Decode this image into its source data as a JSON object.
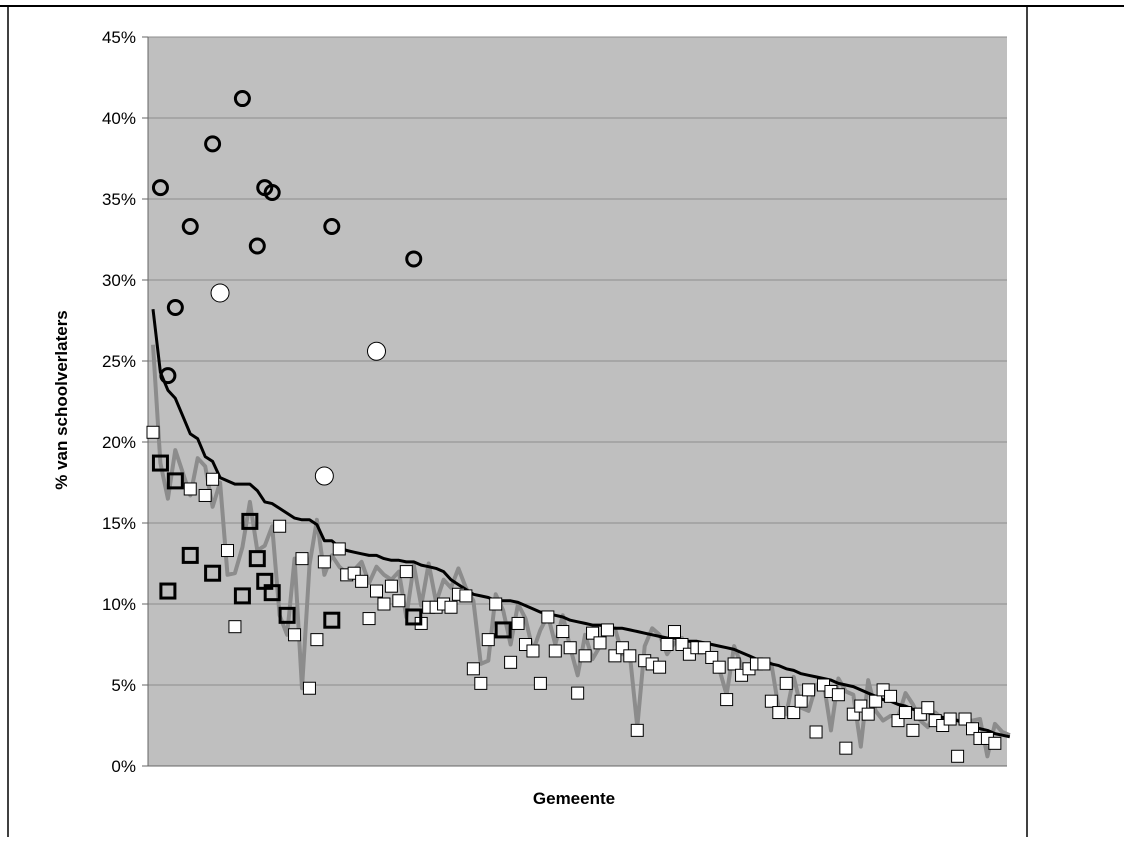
{
  "chart_data": {
    "type": "scatter",
    "xlabel": "Gemeente",
    "ylabel": "% van schoolverlaters",
    "ylim": [
      0,
      45
    ],
    "yticks": [
      0,
      5,
      10,
      15,
      20,
      25,
      30,
      35,
      40,
      45
    ],
    "tick_suffix": "%",
    "grid": true,
    "legend": "none",
    "colors": {
      "plot_background": "#bfbfbf",
      "gridline": "#8c8c8c",
      "black_line": "#000000",
      "gray_line": "#8c8c8c",
      "marker_fill": "#ffffff",
      "marker_stroke": "#000000"
    },
    "n": 116,
    "black_line": [
      28.2,
      24.3,
      23.2,
      22.7,
      21.6,
      20.5,
      20.2,
      19.1,
      18.8,
      17.8,
      17.6,
      17.4,
      17.4,
      17.4,
      17.0,
      16.3,
      16.2,
      15.9,
      15.6,
      15.3,
      15.2,
      15.2,
      14.9,
      13.9,
      13.9,
      13.5,
      13.3,
      13.2,
      13.1,
      13.0,
      13.0,
      12.8,
      12.7,
      12.7,
      12.6,
      12.6,
      12.4,
      12.3,
      12.2,
      12.0,
      11.5,
      11.2,
      10.9,
      10.6,
      10.5,
      10.4,
      10.2,
      10.2,
      10.2,
      10.1,
      9.9,
      9.7,
      9.5,
      9.4,
      9.3,
      9.2,
      9.0,
      8.9,
      8.8,
      8.7,
      8.7,
      8.6,
      8.5,
      8.5,
      8.4,
      8.3,
      8.2,
      8.1,
      8.0,
      7.9,
      7.9,
      7.8,
      7.7,
      7.7,
      7.6,
      7.5,
      7.4,
      7.3,
      7.2,
      7.0,
      6.8,
      6.6,
      6.5,
      6.3,
      6.2,
      6.0,
      5.9,
      5.7,
      5.6,
      5.5,
      5.4,
      5.3,
      5.1,
      5.0,
      4.9,
      4.7,
      4.5,
      4.3,
      4.1,
      4.0,
      3.8,
      3.7,
      3.5,
      3.4,
      3.3,
      3.1,
      3.0,
      2.9,
      2.8,
      2.6,
      2.5,
      2.3,
      2.2,
      2.0,
      1.9,
      1.8
    ],
    "gray_line": [
      26.0,
      18.7,
      16.5,
      19.5,
      18.1,
      16.7,
      19.0,
      18.5,
      16.0,
      17.5,
      11.8,
      11.9,
      13.5,
      16.3,
      13.3,
      13.6,
      14.8,
      9.3,
      8.1,
      12.8,
      4.8,
      12.4,
      15.2,
      11.8,
      13.0,
      12.3,
      11.9,
      12.1,
      12.6,
      11.3,
      12.3,
      11.8,
      11.5,
      12.0,
      9.2,
      12.4,
      9.9,
      12.5,
      10.1,
      11.5,
      11.0,
      12.2,
      11.0,
      10.2,
      6.3,
      6.5,
      10.6,
      9.6,
      7.5,
      10.0,
      9.1,
      7.1,
      8.4,
      9.3,
      7.5,
      9.3,
      7.3,
      5.6,
      8.1,
      6.6,
      7.4,
      8.3,
      8.5,
      6.9,
      6.9,
      2.4,
      7.4,
      8.5,
      8.1,
      6.9,
      7.6,
      7.9,
      6.7,
      7.1,
      7.3,
      6.9,
      6.0,
      4.4,
      7.4,
      6.2,
      5.9,
      6.1,
      6.5,
      6.3,
      3.5,
      3.2,
      5.5,
      3.6,
      3.4,
      5.0,
      5.2,
      2.2,
      5.4,
      4.6,
      4.4,
      1.2,
      5.3,
      3.4,
      2.8,
      3.1,
      3.0,
      4.5,
      3.8,
      2.8,
      2.4,
      3.3,
      2.9,
      3.1,
      2.8,
      2.8,
      2.8,
      2.9,
      0.6,
      2.6,
      2.1,
      1.9
    ],
    "open_squares": [
      {
        "x": 0,
        "y": 20.6
      },
      {
        "x": 5,
        "y": 17.1
      },
      {
        "x": 7,
        "y": 16.7
      },
      {
        "x": 8,
        "y": 17.7
      },
      {
        "x": 10,
        "y": 13.3
      },
      {
        "x": 11,
        "y": 8.6
      },
      {
        "x": 17,
        "y": 14.8
      },
      {
        "x": 19,
        "y": 8.1
      },
      {
        "x": 20,
        "y": 12.8
      },
      {
        "x": 21,
        "y": 4.8
      },
      {
        "x": 22,
        "y": 7.8
      },
      {
        "x": 23,
        "y": 12.6
      },
      {
        "x": 25,
        "y": 13.4
      },
      {
        "x": 26,
        "y": 11.8
      },
      {
        "x": 27,
        "y": 11.9
      },
      {
        "x": 28,
        "y": 11.4
      },
      {
        "x": 29,
        "y": 9.1
      },
      {
        "x": 30,
        "y": 10.8
      },
      {
        "x": 31,
        "y": 10.0
      },
      {
        "x": 32,
        "y": 11.1
      },
      {
        "x": 33,
        "y": 10.2
      },
      {
        "x": 34,
        "y": 12.0
      },
      {
        "x": 36,
        "y": 8.8
      },
      {
        "x": 37,
        "y": 9.8
      },
      {
        "x": 38,
        "y": 9.8
      },
      {
        "x": 39,
        "y": 10.0
      },
      {
        "x": 40,
        "y": 9.8
      },
      {
        "x": 41,
        "y": 10.6
      },
      {
        "x": 42,
        "y": 10.5
      },
      {
        "x": 43,
        "y": 6.0
      },
      {
        "x": 44,
        "y": 5.1
      },
      {
        "x": 45,
        "y": 7.8
      },
      {
        "x": 46,
        "y": 10.0
      },
      {
        "x": 48,
        "y": 6.4
      },
      {
        "x": 49,
        "y": 8.8
      },
      {
        "x": 50,
        "y": 7.5
      },
      {
        "x": 51,
        "y": 7.1
      },
      {
        "x": 52,
        "y": 5.1
      },
      {
        "x": 53,
        "y": 9.2
      },
      {
        "x": 54,
        "y": 7.1
      },
      {
        "x": 55,
        "y": 8.3
      },
      {
        "x": 56,
        "y": 7.3
      },
      {
        "x": 57,
        "y": 4.5
      },
      {
        "x": 58,
        "y": 6.8
      },
      {
        "x": 59,
        "y": 8.2
      },
      {
        "x": 60,
        "y": 7.6
      },
      {
        "x": 61,
        "y": 8.4
      },
      {
        "x": 62,
        "y": 6.8
      },
      {
        "x": 63,
        "y": 7.3
      },
      {
        "x": 64,
        "y": 6.8
      },
      {
        "x": 65,
        "y": 2.2
      },
      {
        "x": 66,
        "y": 6.5
      },
      {
        "x": 67,
        "y": 6.3
      },
      {
        "x": 68,
        "y": 6.1
      },
      {
        "x": 69,
        "y": 7.5
      },
      {
        "x": 70,
        "y": 8.3
      },
      {
        "x": 71,
        "y": 7.5
      },
      {
        "x": 72,
        "y": 6.9
      },
      {
        "x": 73,
        "y": 7.3
      },
      {
        "x": 74,
        "y": 7.3
      },
      {
        "x": 75,
        "y": 6.7
      },
      {
        "x": 76,
        "y": 6.1
      },
      {
        "x": 77,
        "y": 4.1
      },
      {
        "x": 78,
        "y": 6.3
      },
      {
        "x": 79,
        "y": 5.6
      },
      {
        "x": 80,
        "y": 6.0
      },
      {
        "x": 81,
        "y": 6.3
      },
      {
        "x": 82,
        "y": 6.3
      },
      {
        "x": 83,
        "y": 4.0
      },
      {
        "x": 84,
        "y": 3.3
      },
      {
        "x": 85,
        "y": 5.1
      },
      {
        "x": 86,
        "y": 3.3
      },
      {
        "x": 87,
        "y": 4.0
      },
      {
        "x": 88,
        "y": 4.7
      },
      {
        "x": 89,
        "y": 2.1
      },
      {
        "x": 90,
        "y": 5.0
      },
      {
        "x": 91,
        "y": 4.6
      },
      {
        "x": 92,
        "y": 4.4
      },
      {
        "x": 93,
        "y": 1.1
      },
      {
        "x": 94,
        "y": 3.2
      },
      {
        "x": 95,
        "y": 3.7
      },
      {
        "x": 96,
        "y": 3.2
      },
      {
        "x": 97,
        "y": 4.0
      },
      {
        "x": 98,
        "y": 4.7
      },
      {
        "x": 99,
        "y": 4.3
      },
      {
        "x": 100,
        "y": 2.8
      },
      {
        "x": 101,
        "y": 3.3
      },
      {
        "x": 102,
        "y": 2.2
      },
      {
        "x": 103,
        "y": 3.2
      },
      {
        "x": 104,
        "y": 3.6
      },
      {
        "x": 105,
        "y": 2.8
      },
      {
        "x": 106,
        "y": 2.5
      },
      {
        "x": 107,
        "y": 2.9
      },
      {
        "x": 108,
        "y": 0.6
      },
      {
        "x": 109,
        "y": 2.9
      },
      {
        "x": 110,
        "y": 2.3
      },
      {
        "x": 111,
        "y": 1.7
      },
      {
        "x": 112,
        "y": 1.7
      },
      {
        "x": 113,
        "y": 1.4
      }
    ],
    "bold_squares": [
      {
        "x": 1,
        "y": 18.7
      },
      {
        "x": 2,
        "y": 10.8
      },
      {
        "x": 3,
        "y": 17.6
      },
      {
        "x": 5,
        "y": 13.0
      },
      {
        "x": 8,
        "y": 11.9
      },
      {
        "x": 12,
        "y": 10.5
      },
      {
        "x": 13,
        "y": 15.1
      },
      {
        "x": 14,
        "y": 12.8
      },
      {
        "x": 15,
        "y": 11.4
      },
      {
        "x": 16,
        "y": 10.7
      },
      {
        "x": 18,
        "y": 9.3
      },
      {
        "x": 24,
        "y": 9.0
      },
      {
        "x": 35,
        "y": 9.2
      },
      {
        "x": 47,
        "y": 8.4
      }
    ],
    "bold_circles": [
      {
        "x": 1,
        "y": 35.7
      },
      {
        "x": 2,
        "y": 24.1
      },
      {
        "x": 3,
        "y": 28.3
      },
      {
        "x": 5,
        "y": 33.3
      },
      {
        "x": 8,
        "y": 38.4
      },
      {
        "x": 12,
        "y": 41.2
      },
      {
        "x": 14,
        "y": 32.1
      },
      {
        "x": 15,
        "y": 35.7
      },
      {
        "x": 16,
        "y": 35.4
      },
      {
        "x": 24,
        "y": 33.3
      },
      {
        "x": 35,
        "y": 31.3
      }
    ],
    "open_circles": [
      {
        "x": 9,
        "y": 29.2
      },
      {
        "x": 23,
        "y": 17.9
      },
      {
        "x": 30,
        "y": 25.6
      }
    ]
  }
}
